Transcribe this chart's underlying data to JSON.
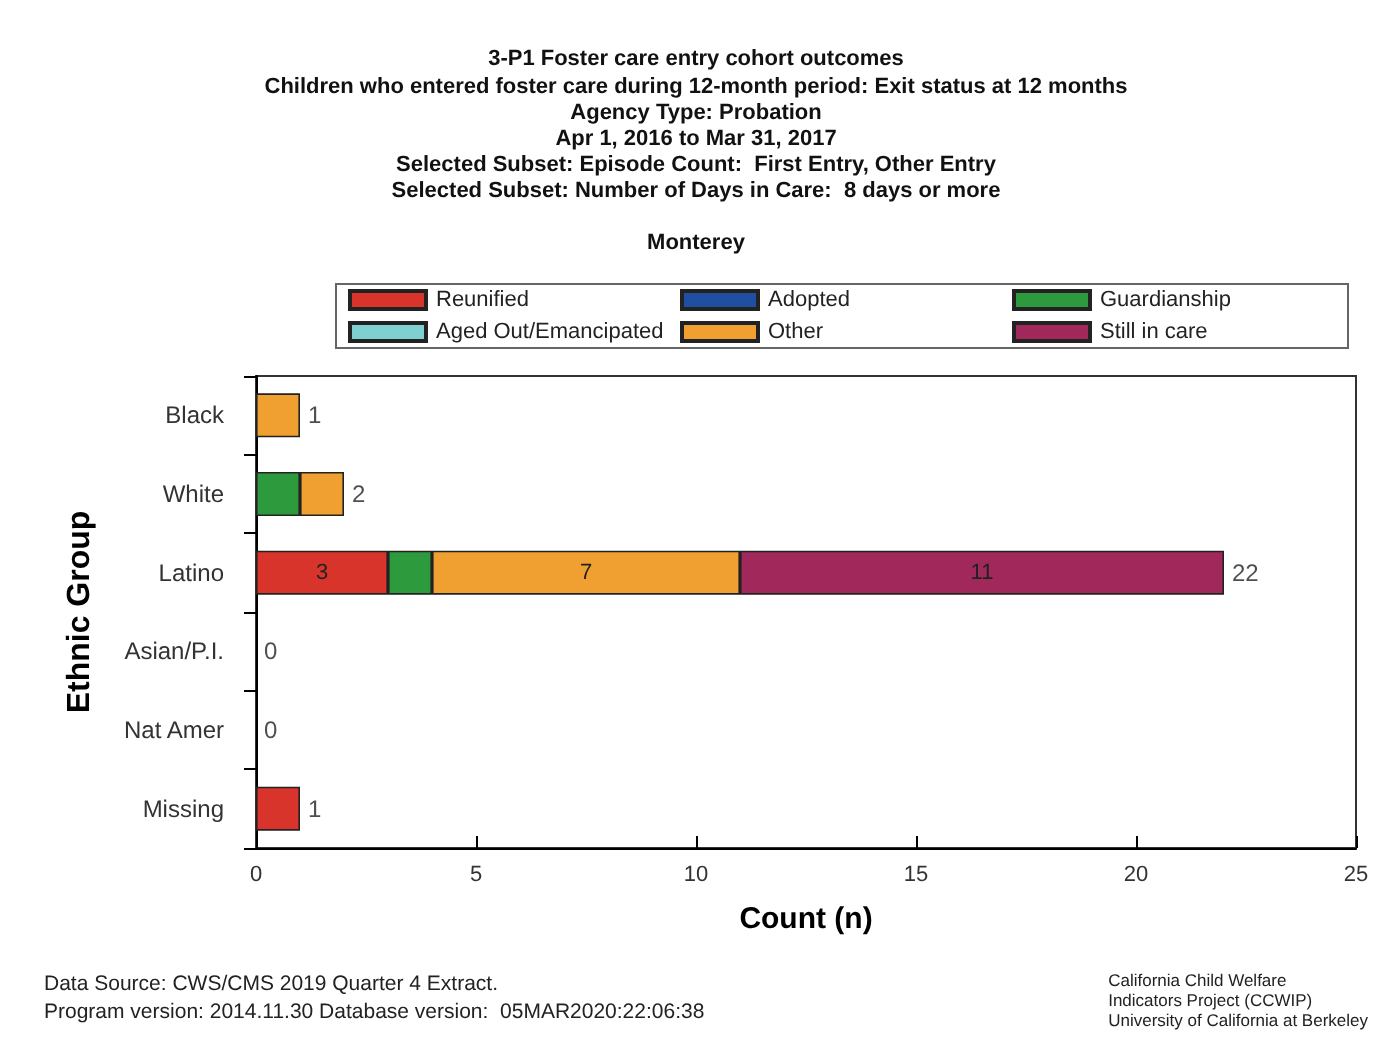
{
  "chart_data": {
    "type": "bar",
    "orientation": "horizontal",
    "stacked": true,
    "title": "3-P1 Foster care entry cohort outcomes",
    "subtitle": "Children who entered foster care during 12-month period: Exit status at 12 months\nAgency Type: Probation\nApr 1, 2016 to Mar 31, 2017\nSelected Subset: Episode Count:  First Entry, Other Entry\nSelected Subset: Number of Days in Care:  8 days or more\n\nMonterey",
    "xlabel": "Count (n)",
    "ylabel": "Ethnic Group",
    "categories": [
      "Black",
      "White",
      "Latino",
      "Asian/P.I.",
      "Nat Amer",
      "Missing"
    ],
    "series": [
      {
        "name": "Reunified",
        "color": "#d9342b",
        "values": [
          0,
          0,
          3,
          0,
          0,
          1
        ],
        "value_labels": [
          null,
          null,
          "3",
          null,
          null,
          null
        ]
      },
      {
        "name": "Adopted",
        "color": "#1f4fa0",
        "values": [
          0,
          0,
          0,
          0,
          0,
          0
        ]
      },
      {
        "name": "Guardianship",
        "color": "#2e9a3e",
        "values": [
          0,
          1,
          1,
          0,
          0,
          0
        ]
      },
      {
        "name": "Aged Out/Emancipated",
        "color": "#7fd0d0",
        "values": [
          0,
          0,
          0,
          0,
          0,
          0
        ]
      },
      {
        "name": "Other",
        "color": "#f0a030",
        "values": [
          1,
          1,
          7,
          0,
          0,
          0
        ],
        "value_labels": [
          null,
          null,
          "7",
          null,
          null,
          null
        ]
      },
      {
        "name": "Still in care",
        "color": "#a0285a",
        "values": [
          0,
          0,
          11,
          0,
          0,
          0
        ],
        "value_labels": [
          null,
          null,
          "11",
          null,
          null,
          null
        ]
      }
    ],
    "totals": [
      "1",
      "2",
      "22",
      "0",
      "0",
      "1"
    ],
    "xlim": [
      0,
      25
    ],
    "xticks": [
      0,
      5,
      10,
      15,
      20,
      25
    ],
    "grid": false,
    "legend": "top",
    "annotations": [
      "Data Source: CWS/CMS 2019 Quarter 4 Extract.\nProgram version: 2014.11.30 Database version:  05MAR2020:22:06:38",
      "California Child Welfare\nIndicators Project (CCWIP)\nUniversity of California at Berkeley"
    ]
  }
}
